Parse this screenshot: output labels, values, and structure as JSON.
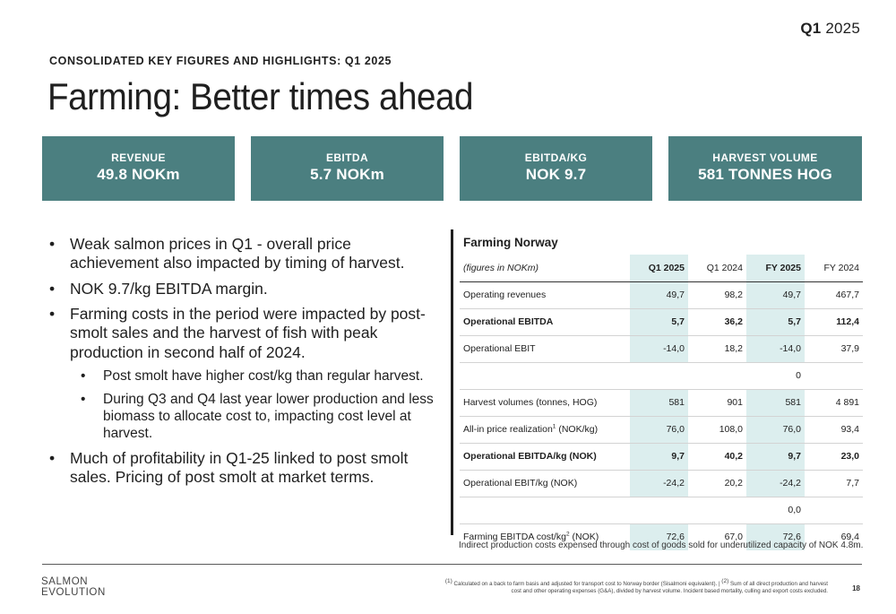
{
  "header": {
    "quarter_bold": "Q1",
    "quarter_year": "2025",
    "kicker": "CONSOLIDATED KEY FIGURES AND HIGHLIGHTS: Q1 2025",
    "title": "Farming: Better times ahead"
  },
  "kpis": [
    {
      "label": "REVENUE",
      "value": "49.8 NOKm"
    },
    {
      "label": "EBITDA",
      "value": "5.7 NOKm"
    },
    {
      "label": "EBITDA/KG",
      "value": "NOK 9.7"
    },
    {
      "label": "HARVEST VOLUME",
      "value": "581 TONNES HOG"
    }
  ],
  "bullets": [
    "Weak salmon prices in Q1 - overall price achievement also impacted by timing of harvest.",
    "NOK 9.7/kg EBITDA margin.",
    "Farming costs in the period were impacted by post-smolt sales and the harvest of fish with peak production in second half of 2024.",
    "Post smolt have higher cost/kg than regular harvest.",
    "During Q3 and Q4 last year lower production and less biomass to allocate cost to, impacting cost level at harvest.",
    "Much of profitability in Q1-25 linked to post smolt sales. Pricing of post smolt at market terms."
  ],
  "table": {
    "title": "Farming Norway",
    "header": [
      "(figures in NOKm)",
      "Q1 2025",
      "Q1 2024",
      "FY 2025",
      "FY 2024"
    ],
    "rows": [
      {
        "label": "Operating revenues",
        "sup": "",
        "suffix": "",
        "values": [
          "49,7",
          "98,2",
          "49,7",
          "467,7"
        ]
      },
      {
        "label": "Operational EBITDA",
        "sup": "",
        "suffix": "",
        "values": [
          "5,7",
          "36,2",
          "5,7",
          "112,4"
        ]
      },
      {
        "label": "Operational EBIT",
        "sup": "",
        "suffix": "",
        "values": [
          "-14,0",
          "18,2",
          "-14,0",
          "37,9"
        ]
      },
      {
        "label": "",
        "sup": "",
        "suffix": "",
        "values": [
          "",
          "",
          "0",
          ""
        ]
      },
      {
        "label": "Harvest volumes (tonnes, HOG)",
        "sup": "",
        "suffix": "",
        "values": [
          "581",
          "901",
          "581",
          "4 891"
        ]
      },
      {
        "label": "All-in price realization",
        "sup": "1",
        "suffix": " (NOK/kg)",
        "values": [
          "76,0",
          "108,0",
          "76,0",
          "93,4"
        ]
      },
      {
        "label": "Operational EBITDA/kg (NOK)",
        "sup": "",
        "suffix": "",
        "values": [
          "9,7",
          "40,2",
          "9,7",
          "23,0"
        ]
      },
      {
        "label": "Operational EBIT/kg (NOK)",
        "sup": "",
        "suffix": "",
        "values": [
          "-24,2",
          "20,2",
          "-24,2",
          "7,7"
        ]
      },
      {
        "label": "",
        "sup": "",
        "suffix": "",
        "values": [
          "",
          "",
          "0,0",
          ""
        ]
      },
      {
        "label": "Farming EBITDA cost/kg",
        "sup": "2",
        "suffix": " (NOK)",
        "values": [
          "72,6",
          "67,0",
          "72,6",
          "69,4"
        ]
      }
    ],
    "note": "Indirect production costs expensed through cost of goods sold for underutilized capacity of NOK 4.8m."
  },
  "footer": {
    "logo_line1": "SALMON",
    "logo_line2": "EVOLUTION",
    "fn1_mark": "(1)",
    "fn1": " Calculated on a back to farm basis and adjusted for transport cost to Norway border (Sisalmoni equivalent). | ",
    "fn2_mark": "(2)",
    "fn2": " Sum of all direct production and harvest cost and other operating expenses (G&A), divided by harvest volume. Incident based mortality, culling and export costs excluded.",
    "page_number": "18"
  },
  "colors": {
    "kpi_background": "#4b7f80",
    "table_highlight": "#dceeee",
    "text": "#1f1f1f"
  }
}
